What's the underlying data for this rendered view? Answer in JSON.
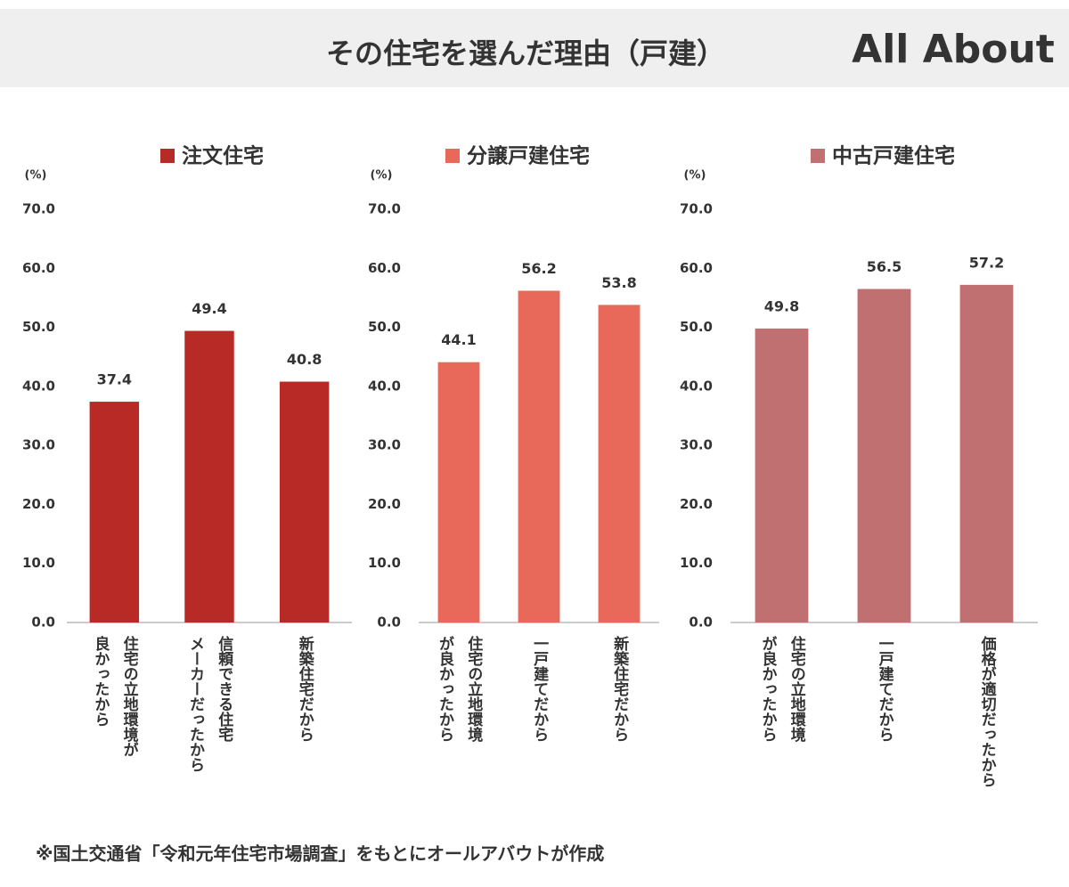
{
  "title": "その住宅を選んだ理由（戸建）",
  "logo": "All About",
  "note": "※国土交通省「令和元年住宅市場調査」をもとにオールアバウトが作成",
  "chart_data": [
    {
      "type": "bar",
      "y_label": "(%)",
      "categories": [
        "住宅の立地環境が\n良かったから",
        "信頼できる住宅\nメーカーだったから",
        "新築住宅だから"
      ],
      "series": [
        {
          "name": "注文住宅",
          "color": "#b82a25",
          "values": [
            37.4,
            49.4,
            40.8
          ]
        }
      ],
      "ylim": [
        0,
        70
      ],
      "yticks": [
        {
          "value": 0,
          "label": "0.0"
        },
        {
          "value": 10,
          "label": "10.0"
        },
        {
          "value": 20,
          "label": "20.0"
        },
        {
          "value": 30,
          "label": "30.0"
        },
        {
          "value": 40,
          "label": "40.0"
        },
        {
          "value": 50,
          "label": "50.0"
        },
        {
          "value": 60,
          "label": "60.0"
        },
        {
          "value": 70,
          "label": "70.0"
        }
      ]
    },
    {
      "type": "bar",
      "y_label": "(%)",
      "categories": [
        "住宅の立地環境\nが良かったから",
        "一戸建てだから",
        "新築住宅だから"
      ],
      "series": [
        {
          "name": "分譲戸建住宅",
          "color": "#e8685a",
          "values": [
            44.1,
            56.2,
            53.8
          ]
        }
      ],
      "ylim": [
        0,
        70
      ],
      "yticks": [
        {
          "value": 0,
          "label": "0.0"
        },
        {
          "value": 10,
          "label": "10.0"
        },
        {
          "value": 20,
          "label": "20.0"
        },
        {
          "value": 30,
          "label": "30.0"
        },
        {
          "value": 40,
          "label": "40.0"
        },
        {
          "value": 50,
          "label": "50.0"
        },
        {
          "value": 60,
          "label": "60.0"
        },
        {
          "value": 70,
          "label": "70.0"
        }
      ]
    },
    {
      "type": "bar",
      "y_label": "(%)",
      "categories": [
        "住宅の立地環境\nが良かったから",
        "一戸建てだから",
        "価格が適切だったから"
      ],
      "series": [
        {
          "name": "中古戸建住宅",
          "color": "#c07070",
          "values": [
            49.8,
            56.5,
            57.2
          ]
        }
      ],
      "ylim": [
        0,
        70
      ],
      "yticks": [
        {
          "value": 0,
          "label": "0.0"
        },
        {
          "value": 10,
          "label": "10.0"
        },
        {
          "value": 20,
          "label": "20.0"
        },
        {
          "value": 30,
          "label": "30.0"
        },
        {
          "value": 40,
          "label": "40.0"
        },
        {
          "value": 50,
          "label": "50.0"
        },
        {
          "value": 60,
          "label": "60.0"
        },
        {
          "value": 70,
          "label": "70.0"
        }
      ]
    }
  ]
}
